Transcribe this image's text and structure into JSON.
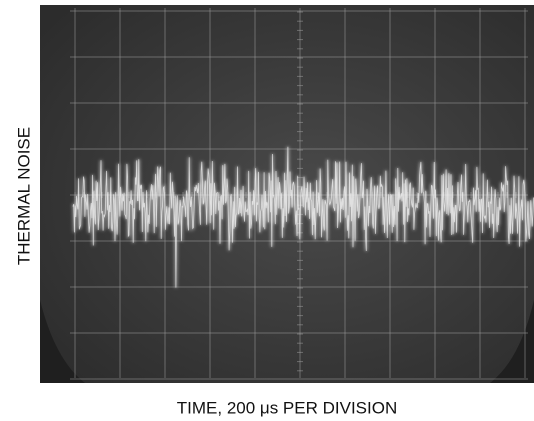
{
  "figure": {
    "y_label": "THERMAL NOISE",
    "x_label": "TIME, 200 μs PER DIVISION"
  }
}
